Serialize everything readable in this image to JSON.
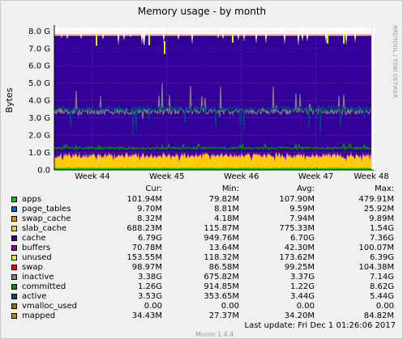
{
  "chart_data": {
    "type": "area",
    "title": "Memory usage - by month",
    "ylabel": "Bytes",
    "watermark": "RRDTOOL / TOBI OETIKER",
    "ylim": [
      0,
      8.2
    ],
    "yticks": [
      {
        "v": 0.0,
        "label": "0.0"
      },
      {
        "v": 1.0,
        "label": "1.0 G"
      },
      {
        "v": 2.0,
        "label": "2.0 G"
      },
      {
        "v": 3.0,
        "label": "3.0 G"
      },
      {
        "v": 4.0,
        "label": "4.0 G"
      },
      {
        "v": 5.0,
        "label": "5.0 G"
      },
      {
        "v": 6.0,
        "label": "6.0 G"
      },
      {
        "v": 7.0,
        "label": "7.0 G"
      },
      {
        "v": 8.0,
        "label": "8.0 G"
      }
    ],
    "xticks": [
      {
        "pos": 0.12,
        "label": "Week 44"
      },
      {
        "pos": 0.355,
        "label": "Week 45"
      },
      {
        "pos": 0.59,
        "label": "Week 46"
      },
      {
        "pos": 0.825,
        "label": "Week 47"
      },
      {
        "pos": 1.0,
        "label": "Week 48"
      }
    ],
    "approx_levels_gb": {
      "apps": 0.1,
      "page_tables": 0.01,
      "swap_cache": 0.008,
      "slab_cache": 0.69,
      "buffers": 0.07,
      "swap": 0.1,
      "inactive": 3.38,
      "committed": 1.26,
      "active": 3.53,
      "total": 7.8
    }
  },
  "legend": {
    "headers": {
      "cur": "Cur:",
      "min": "Min:",
      "avg": "Avg:",
      "max": "Max:"
    },
    "rows": [
      {
        "name": "apps",
        "color": "#00cc00",
        "cur": "101.94M",
        "min": "79.82M",
        "avg": "107.90M",
        "max": "479.91M"
      },
      {
        "name": "page_tables",
        "color": "#0066b3",
        "cur": "9.70M",
        "min": "8.81M",
        "avg": "9.59M",
        "max": "25.92M"
      },
      {
        "name": "swap_cache",
        "color": "#ff8000",
        "cur": "8.32M",
        "min": "4.18M",
        "avg": "7.94M",
        "max": "9.89M"
      },
      {
        "name": "slab_cache",
        "color": "#ffcc00",
        "cur": "688.23M",
        "min": "115.87M",
        "avg": "775.33M",
        "max": "1.54G"
      },
      {
        "name": "cache",
        "color": "#330099",
        "cur": "6.79G",
        "min": "949.76M",
        "avg": "6.70G",
        "max": "7.36G"
      },
      {
        "name": "buffers",
        "color": "#990099",
        "cur": "70.78M",
        "min": "13.64M",
        "avg": "42.30M",
        "max": "100.07M"
      },
      {
        "name": "unused",
        "color": "#ccff00",
        "cur": "153.55M",
        "min": "118.32M",
        "avg": "173.62M",
        "max": "6.39G"
      },
      {
        "name": "swap",
        "color": "#ff0000",
        "cur": "98.97M",
        "min": "86.58M",
        "avg": "99.25M",
        "max": "104.38M"
      },
      {
        "name": "inactive",
        "color": "#808080",
        "cur": "3.38G",
        "min": "675.82M",
        "avg": "3.37G",
        "max": "7.14G"
      },
      {
        "name": "committed",
        "color": "#008f00",
        "cur": "1.26G",
        "min": "914.85M",
        "avg": "1.22G",
        "max": "8.62G"
      },
      {
        "name": "active",
        "color": "#00487d",
        "cur": "3.53G",
        "min": "353.65M",
        "avg": "3.44G",
        "max": "5.44G"
      },
      {
        "name": "vmalloc_used",
        "color": "#b35a00",
        "cur": "0.00",
        "min": "0.00",
        "avg": "0.00",
        "max": "0.00"
      },
      {
        "name": "mapped",
        "color": "#b38f00",
        "cur": "34.43M",
        "min": "27.37M",
        "avg": "34.20M",
        "max": "84.82M"
      }
    ]
  },
  "footer": {
    "last_update": "Last update:  Fri Dec  1 01:26:06 2017",
    "munin": "Munin 1.4.4"
  }
}
